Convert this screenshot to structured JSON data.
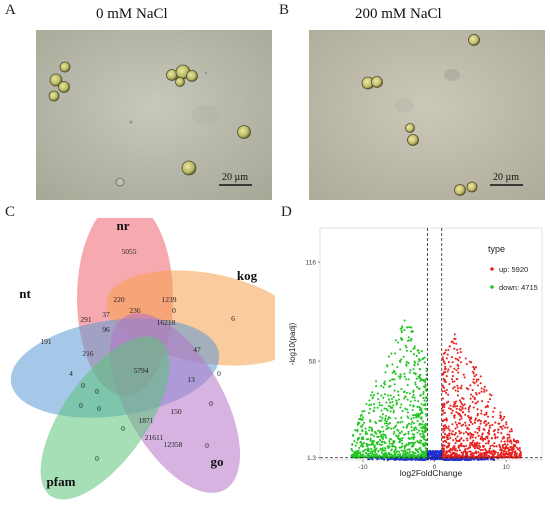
{
  "figure": {
    "panels": {
      "a": {
        "letter": "A",
        "title": "0 mM NaCl",
        "scale_bar": "20 µm"
      },
      "b": {
        "letter": "B",
        "title": "200 mM NaCl",
        "scale_bar": "20 µm"
      },
      "c": {
        "letter": "C",
        "sets": [
          {
            "name": "nt",
            "color": "#5b9bd5"
          },
          {
            "name": "nr",
            "color": "#f06270"
          },
          {
            "name": "kog",
            "color": "#f5a04a"
          },
          {
            "name": "go",
            "color": "#b574c8"
          },
          {
            "name": "pfam",
            "color": "#5cc47a"
          }
        ],
        "counts": [
          "5055",
          "6",
          "0",
          "0",
          "191",
          "220",
          "1239",
          "291",
          "37",
          "236",
          "0",
          "16218",
          "96",
          "47",
          "216",
          "5794",
          "4",
          "0",
          "13",
          "0",
          "0",
          "0",
          "0",
          "1871",
          "150",
          "0",
          "21611",
          "12358",
          "0"
        ]
      },
      "d": {
        "letter": "D",
        "y_axis_label": "-log10(padj)",
        "x_axis_label": "log2FoldChange",
        "legend": {
          "title": "type",
          "items": [
            {
              "label": "up: 5920",
              "color": "#e8221f"
            },
            {
              "label": "down: 4715",
              "color": "#22c422"
            }
          ]
        },
        "chart_data": {
          "type": "scatter",
          "title": "",
          "xlabel": "log2FoldChange",
          "ylabel": "-log10(padj)",
          "xlim": [
            -16,
            15
          ],
          "ylim": [
            0,
            136
          ],
          "x_ticks": [
            "-10",
            "0",
            "10"
          ],
          "y_ticks": [
            "1.3",
            "58",
            "116"
          ],
          "threshold_lines": {
            "x": [
              -1,
              1
            ],
            "y": 1.3
          },
          "series": [
            {
              "name": "up: 5920",
              "color": "#e8221f",
              "x_range": [
                1,
                12
              ],
              "y_range": [
                1.3,
                75
              ]
            },
            {
              "name": "down: 4715",
              "color": "#22c422",
              "x_range": [
                -12,
                -1
              ],
              "y_range": [
                1.3,
                85
              ]
            },
            {
              "name": "",
              "color": "#1f2fd0",
              "x_range": [
                -10,
                10
              ],
              "y_range": [
                0,
                6
              ]
            }
          ]
        }
      }
    }
  }
}
